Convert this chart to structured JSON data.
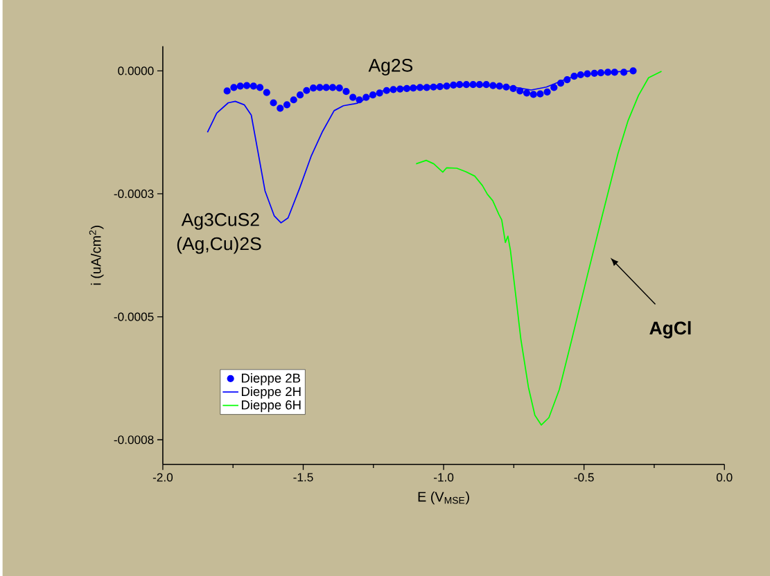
{
  "chart_data": {
    "type": "line",
    "xlabel": "E (V$_{MSE}$)",
    "ylabel": "i (uA/cm$^{2}$)",
    "xlim": [
      -2.0,
      0.0
    ],
    "ylim": [
      -0.0008,
      5e-05
    ],
    "xticks": [
      {
        "value": -2.0,
        "label": "-2.0"
      },
      {
        "value": -1.5,
        "label": "-1.5"
      },
      {
        "value": -1.0,
        "label": "-1.0"
      },
      {
        "value": -0.5,
        "label": "-0.5"
      },
      {
        "value": 0.0,
        "label": "0.0"
      }
    ],
    "yticks": [
      {
        "value": 0.0,
        "label": "0.0000"
      },
      {
        "value": -0.00025,
        "label": "-0.0003"
      },
      {
        "value": -0.0005,
        "label": "-0.0005"
      },
      {
        "value": -0.00075,
        "label": "-0.0008"
      }
    ],
    "legend": "bottom left",
    "grid": false,
    "annotations": [
      "Ag2S",
      "Ag3CuS2",
      "(Ag,Cu)2S",
      "AgCl"
    ],
    "series": [
      {
        "name": "Dieppe 2B",
        "type": "scatter",
        "color": "#0000ff",
        "marker": "circle",
        "x": [
          -1.771,
          -1.747,
          -1.724,
          -1.701,
          -1.677,
          -1.654,
          -1.63,
          -1.606,
          -1.582,
          -1.558,
          -1.534,
          -1.511,
          -1.488,
          -1.464,
          -1.441,
          -1.418,
          -1.395,
          -1.371,
          -1.347,
          -1.323,
          -1.3,
          -1.276,
          -1.252,
          -1.228,
          -1.203,
          -1.179,
          -1.155,
          -1.131,
          -1.108,
          -1.084,
          -1.06,
          -1.036,
          -1.013,
          -0.989,
          -0.965,
          -0.943,
          -0.919,
          -0.895,
          -0.872,
          -0.848,
          -0.824,
          -0.801,
          -0.777,
          -0.752,
          -0.728,
          -0.704,
          -0.68,
          -0.656,
          -0.631,
          -0.607,
          -0.583,
          -0.56,
          -0.535,
          -0.512,
          -0.488,
          -0.463,
          -0.44,
          -0.415,
          -0.391,
          -0.358,
          -0.325
        ],
        "values": [
          -4.1e-05,
          -3.4e-05,
          -3.1e-05,
          -3e-05,
          -3.1e-05,
          -3.4e-05,
          -4.4e-05,
          -6.5e-05,
          -7.6e-05,
          -6.9e-05,
          -5.9e-05,
          -4.9e-05,
          -4e-05,
          -3.5e-05,
          -3.4e-05,
          -3.4e-05,
          -3.4e-05,
          -3.5e-05,
          -4.2e-05,
          -5.4e-05,
          -5.9e-05,
          -5.4e-05,
          -4.9e-05,
          -4.5e-05,
          -4e-05,
          -3.8e-05,
          -3.7e-05,
          -3.6e-05,
          -3.5e-05,
          -3.4e-05,
          -3.4e-05,
          -3.3e-05,
          -3.2e-05,
          -3.1e-05,
          -2.9e-05,
          -2.8e-05,
          -2.8e-05,
          -2.8e-05,
          -2.8e-05,
          -2.8e-05,
          -3e-05,
          -3.1e-05,
          -3.3e-05,
          -3.6e-05,
          -4.1e-05,
          -4.5e-05,
          -4.8e-05,
          -4.7e-05,
          -4.3e-05,
          -3.4e-05,
          -2.5e-05,
          -1.8e-05,
          -1.1e-05,
          -8e-06,
          -6e-06,
          -5e-06,
          -4e-06,
          -3e-06,
          -3e-06,
          -3e-06,
          0.0
        ]
      },
      {
        "name": "Dieppe 2H",
        "color": "#0000ff",
        "marker": "none",
        "line_style": "solid",
        "x": [
          -1.841,
          -1.808,
          -1.767,
          -1.742,
          -1.71,
          -1.685,
          -1.661,
          -1.636,
          -1.603,
          -1.579,
          -1.554,
          -1.513,
          -1.472,
          -1.431,
          -1.39,
          -1.357,
          -1.308,
          -1.267,
          -1.218,
          -1.144,
          -1.062,
          -0.972,
          -0.916,
          -0.825,
          -0.752,
          -0.688,
          -0.634,
          -0.561,
          -0.506,
          -0.415,
          -0.325
        ],
        "values": [
          -0.000125,
          -8.6e-05,
          -6.5e-05,
          -6.2e-05,
          -6.9e-05,
          -9e-05,
          -0.000165,
          -0.000244,
          -0.000295,
          -0.000309,
          -0.000299,
          -0.000239,
          -0.000174,
          -0.000123,
          -8.1e-05,
          -7.1e-05,
          -6.6e-05,
          -5.3e-05,
          -4.1e-05,
          -3.4e-05,
          -3.1e-05,
          -2.9e-05,
          -2.9e-05,
          -3e-05,
          -3.3e-05,
          -3.9e-05,
          -3.3e-05,
          -1.6e-05,
          -8e-06,
          -3e-06,
          0.0
        ]
      },
      {
        "name": "Dieppe 6H",
        "color": "#00ff00",
        "marker": "none",
        "line_style": "solid",
        "x": [
          -1.098,
          -1.062,
          -1.035,
          -1.003,
          -0.989,
          -0.953,
          -0.921,
          -0.889,
          -0.862,
          -0.844,
          -0.825,
          -0.803,
          -0.793,
          -0.78,
          -0.771,
          -0.762,
          -0.743,
          -0.725,
          -0.698,
          -0.675,
          -0.652,
          -0.625,
          -0.588,
          -0.543,
          -0.488,
          -0.434,
          -0.379,
          -0.343,
          -0.306,
          -0.27,
          -0.224
        ],
        "values": [
          -0.000189,
          -0.000182,
          -0.000189,
          -0.000206,
          -0.000197,
          -0.000198,
          -0.000205,
          -0.000214,
          -0.000233,
          -0.000251,
          -0.000264,
          -0.000292,
          -0.000303,
          -0.000349,
          -0.000336,
          -0.000365,
          -0.000457,
          -0.000545,
          -0.000643,
          -0.0007,
          -0.00072,
          -0.000705,
          -0.000648,
          -0.000545,
          -0.000416,
          -0.000292,
          -0.000168,
          -0.000101,
          -5e-05,
          -1.4e-05,
          -1e-06
        ]
      }
    ]
  }
}
